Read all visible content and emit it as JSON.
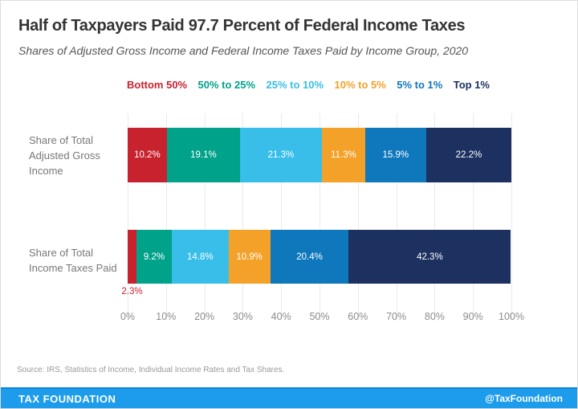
{
  "title": "Half of Taxpayers Paid 97.7 Percent of Federal Income Taxes",
  "subtitle": "Shares of Adjusted Gross Income and Federal Income Taxes Paid by Income Group, 2020",
  "colors": {
    "red": "#C9222F",
    "green": "#00A289",
    "cyan": "#38BEE8",
    "orange": "#F4A129",
    "blue": "#0F77BB",
    "navy": "#1D3160",
    "banner_bg": "#1E9CEC",
    "banner_border": "#0C85D8",
    "grid": "#EAEAEA"
  },
  "legend": [
    {
      "label": "Bottom 50%",
      "color": "#C9222F"
    },
    {
      "label": "50% to 25%",
      "color": "#00A289"
    },
    {
      "label": "25% to 10%",
      "color": "#38BEE8"
    },
    {
      "label": "10% to 5%",
      "color": "#F4A129"
    },
    {
      "label": "5% to 1%",
      "color": "#0F77BB"
    },
    {
      "label": "Top 1%",
      "color": "#1D3160"
    }
  ],
  "chart_data": {
    "type": "bar",
    "orientation": "horizontal-stacked",
    "title": "Half of Taxpayers Paid 97.7 Percent of Federal Income Taxes",
    "subtitle": "Shares of Adjusted Gross Income and Federal Income Taxes Paid by Income Group, 2020",
    "categories": [
      "Share of Total Adjusted Gross Income",
      "Share of Total Income Taxes Paid"
    ],
    "category_label_lines": [
      [
        "Share of Total",
        "Adjusted Gross",
        "Income"
      ],
      [
        "Share of Total",
        "Income Taxes Paid"
      ]
    ],
    "series": [
      {
        "name": "Bottom 50%",
        "color": "#C9222F",
        "values": [
          10.2,
          2.3
        ]
      },
      {
        "name": "50% to 25%",
        "color": "#00A289",
        "values": [
          19.1,
          9.2
        ]
      },
      {
        "name": "25% to 10%",
        "color": "#38BEE8",
        "values": [
          21.3,
          14.8
        ]
      },
      {
        "name": "10% to 5%",
        "color": "#F4A129",
        "values": [
          11.3,
          10.9
        ]
      },
      {
        "name": "5% to 1%",
        "color": "#0F77BB",
        "values": [
          15.9,
          20.4
        ]
      },
      {
        "name": "Top 1%",
        "color": "#1D3160",
        "values": [
          22.2,
          42.3
        ]
      }
    ],
    "x_ticks": [
      "0%",
      "10%",
      "20%",
      "30%",
      "40%",
      "50%",
      "60%",
      "70%",
      "80%",
      "90%",
      "100%"
    ],
    "xlim": [
      0,
      100
    ],
    "grid": true,
    "legend_position": "top",
    "inside_label_min": 4,
    "value_suffix": "%"
  },
  "footer": {
    "source": "Source: IRS, Statistics of Income, Individual Income Rates and Tax Shares.",
    "brand": "TAX FOUNDATION",
    "handle": "@TaxFoundation"
  }
}
